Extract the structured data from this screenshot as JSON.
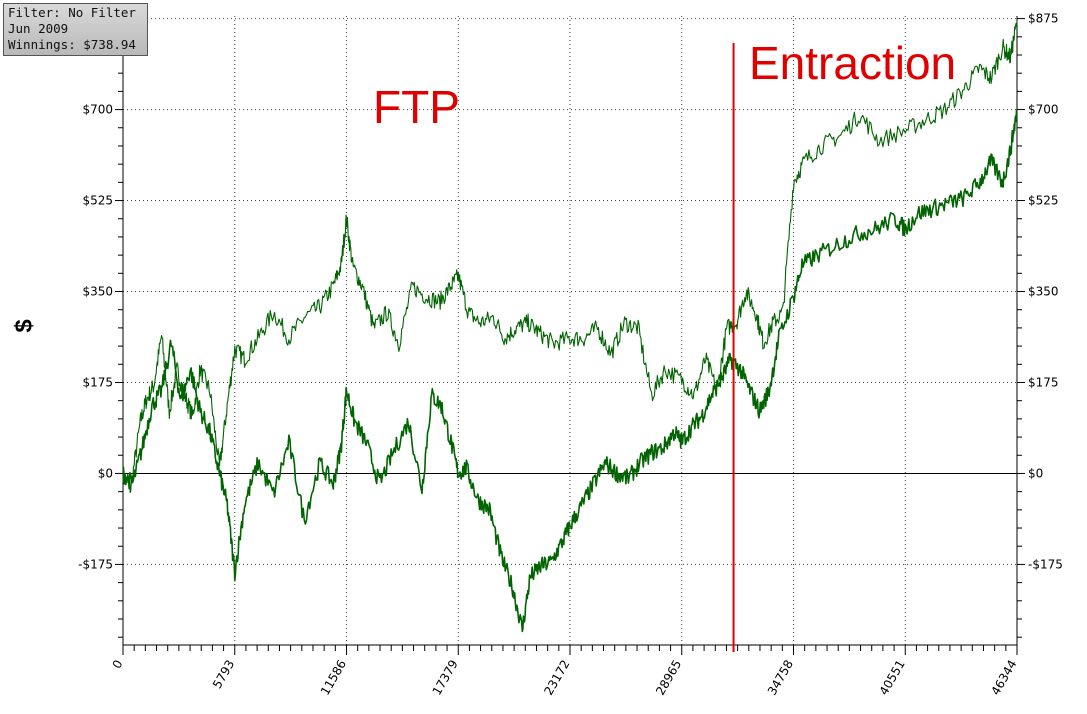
{
  "filter_box": {
    "filter": "Filter: No Filter",
    "date": "Jun 2009",
    "winnings": "Winnings: $738.94"
  },
  "chart_data": {
    "type": "line",
    "ylabel": "$",
    "xlim": [
      0,
      46344
    ],
    "ylim": [
      -330,
      880
    ],
    "x_ticks": [
      0,
      5793,
      11586,
      17379,
      23172,
      28965,
      34758,
      40551,
      46344
    ],
    "x_tick_labels": [
      "0",
      "5793",
      "11586",
      "17379",
      "23172",
      "28965",
      "34758",
      "40551",
      "46344"
    ],
    "y_ticks": [
      -175,
      0,
      175,
      350,
      525,
      700,
      875
    ],
    "y_tick_labels": [
      "-$175",
      "$0",
      "$175",
      "$350",
      "$525",
      "$700",
      "$875"
    ],
    "grid": true,
    "line_color": "#006400",
    "series": [
      {
        "x": [
          0,
          400,
          900,
          1200,
          1600,
          2000,
          2400,
          2800,
          3200,
          3600,
          4000,
          4500,
          5000,
          5400,
          5793,
          6300,
          7000,
          7800,
          8600,
          9400,
          10200,
          10900,
          11300,
          11586,
          11900,
          12400,
          13000,
          13700,
          14300,
          15000,
          15700,
          16400,
          17000,
          17379,
          17900,
          18500,
          19200,
          19800,
          20400,
          21000,
          21600,
          22300,
          23172,
          23900,
          24600,
          25300,
          26000,
          26700,
          27400,
          28100,
          28965,
          29600,
          30200,
          30800,
          31300,
          31800,
          32300,
          32800,
          33200,
          33700,
          34200,
          34758,
          35300,
          36200,
          37200,
          38200,
          39200,
          40551,
          41600,
          42600,
          43600,
          44400,
          45000,
          45600,
          46000,
          46344
        ],
        "y": [
          0,
          -30,
          100,
          140,
          170,
          265,
          120,
          200,
          150,
          110,
          200,
          160,
          10,
          130,
          240,
          220,
          260,
          310,
          260,
          300,
          320,
          360,
          400,
          490,
          400,
          360,
          280,
          310,
          250,
          360,
          340,
          330,
          360,
          380,
          310,
          290,
          300,
          260,
          280,
          290,
          270,
          250,
          260,
          260,
          280,
          230,
          290,
          280,
          150,
          200,
          180,
          150,
          220,
          160,
          280,
          290,
          350,
          310,
          250,
          290,
          310,
          560,
          600,
          630,
          650,
          690,
          640,
          660,
          680,
          700,
          740,
          780,
          760,
          820,
          800,
          870
        ]
      },
      {
        "x": [
          0,
          500,
          1000,
          1500,
          2000,
          2500,
          3000,
          3500,
          4000,
          4500,
          5000,
          5400,
          5793,
          6300,
          7000,
          7800,
          8600,
          9400,
          10200,
          10900,
          11300,
          11586,
          12000,
          12600,
          13300,
          14000,
          14800,
          15500,
          16000,
          16500,
          17000,
          17379,
          17800,
          18400,
          19000,
          19600,
          20200,
          20700,
          21100,
          21600,
          22200,
          22800,
          23172,
          23800,
          24400,
          25000,
          25600,
          26200,
          26800,
          27400,
          28000,
          28600,
          28965,
          29500,
          30000,
          30500,
          31000,
          31500,
          32000,
          32500,
          33000,
          33500,
          34000,
          34758,
          35200,
          36000,
          37000,
          38000,
          39000,
          40000,
          40551,
          41200,
          42000,
          42800,
          43600,
          44400,
          45000,
          45600,
          46000,
          46344
        ],
        "y": [
          0,
          -20,
          50,
          130,
          160,
          250,
          140,
          200,
          120,
          80,
          0,
          -60,
          -190,
          -60,
          20,
          -40,
          60,
          -90,
          20,
          -20,
          50,
          160,
          100,
          60,
          -20,
          40,
          100,
          -30,
          150,
          130,
          60,
          0,
          10,
          -50,
          -70,
          -160,
          -220,
          -300,
          -200,
          -180,
          -170,
          -130,
          -100,
          -60,
          -20,
          20,
          0,
          -10,
          20,
          40,
          50,
          80,
          60,
          90,
          110,
          150,
          180,
          220,
          200,
          160,
          120,
          160,
          260,
          340,
          400,
          420,
          440,
          460,
          470,
          490,
          470,
          500,
          510,
          520,
          530,
          560,
          600,
          560,
          620,
          700
        ]
      }
    ],
    "annotations": [
      {
        "text": "FTP",
        "color": "#e00000"
      },
      {
        "text": "Entraction",
        "color": "#e00000"
      }
    ],
    "vertical_marker": {
      "x": 31650,
      "color": "#e00000"
    }
  }
}
